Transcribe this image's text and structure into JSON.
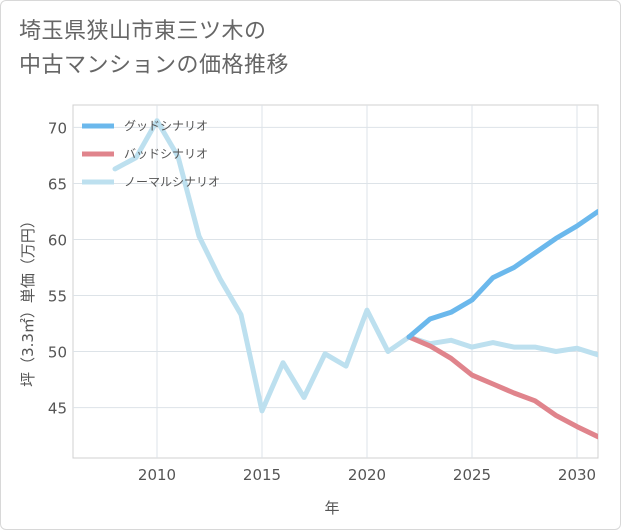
{
  "title_lines": [
    "埼玉県狭山市東三ツ木の",
    "中古マンションの価格推移"
  ],
  "chart_data": {
    "type": "line",
    "title": "埼玉県狭山市東三ツ木の中古マンションの価格推移",
    "xlabel": "年",
    "ylabel": "坪（3.3㎡）単価（万円）",
    "xlim": [
      2006,
      2031
    ],
    "ylim": [
      40.5,
      72
    ],
    "x_ticks": [
      2010,
      2015,
      2020,
      2025,
      2030
    ],
    "y_ticks": [
      45,
      50,
      55,
      60,
      65,
      70
    ],
    "grid": true,
    "legend_position": "top-left",
    "series": [
      {
        "name": "グッドシナリオ",
        "color": "#6bb8ec",
        "x": [
          2022,
          2023,
          2024,
          2025,
          2026,
          2027,
          2028,
          2029,
          2030,
          2031
        ],
        "y": [
          51.3,
          52.9,
          53.5,
          54.6,
          56.6,
          57.5,
          58.8,
          60.1,
          61.2,
          62.5
        ]
      },
      {
        "name": "バッドシナリオ",
        "color": "#e0848c",
        "x": [
          2022,
          2023,
          2024,
          2025,
          2026,
          2027,
          2028,
          2029,
          2030,
          2031
        ],
        "y": [
          51.3,
          50.5,
          49.4,
          47.9,
          47.1,
          46.3,
          45.6,
          44.3,
          43.3,
          42.4
        ]
      },
      {
        "name": "ノーマルシナリオ",
        "color": "#bde0ef",
        "x": [
          2008,
          2009,
          2010,
          2011,
          2012,
          2013,
          2014,
          2015,
          2016,
          2017,
          2018,
          2019,
          2020,
          2021,
          2022,
          2023,
          2024,
          2025,
          2026,
          2027,
          2028,
          2029,
          2030,
          2031
        ],
        "y": [
          66.3,
          67.3,
          70.6,
          67.4,
          60.3,
          56.5,
          53.3,
          44.7,
          49.0,
          45.9,
          49.8,
          48.7,
          53.7,
          50.0,
          51.3,
          50.7,
          51.0,
          50.4,
          50.8,
          50.4,
          50.4,
          50.0,
          50.3,
          49.7
        ]
      }
    ]
  }
}
